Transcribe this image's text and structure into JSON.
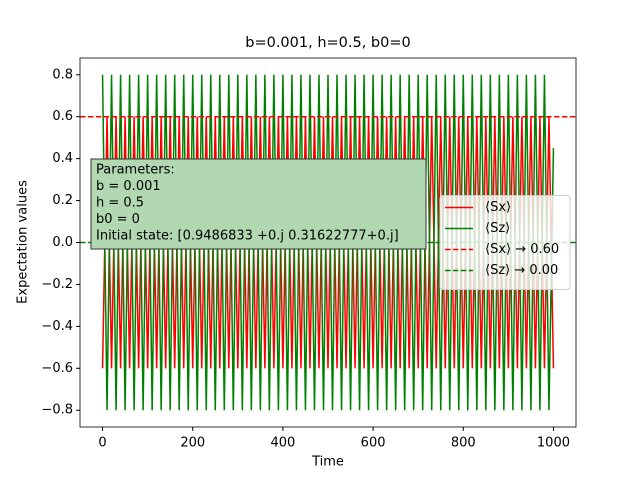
{
  "chart_data": {
    "type": "line",
    "title": "b=0.001, h=0.5, b0=0",
    "xlabel": "Time",
    "ylabel": "Expectation values",
    "x": [
      0,
      10,
      20,
      30,
      40,
      50,
      60,
      70,
      80,
      90,
      100,
      110,
      120,
      130,
      140,
      150,
      160,
      170,
      180,
      190,
      200,
      210,
      220,
      230,
      240,
      250,
      260,
      270,
      280,
      290,
      300,
      310,
      320,
      330,
      340,
      350,
      360,
      370,
      380,
      390,
      400,
      410,
      420,
      430,
      440,
      450,
      460,
      470,
      480,
      490,
      500,
      510,
      520,
      530,
      540,
      550,
      560,
      570,
      580,
      590,
      600,
      610,
      620,
      630,
      640,
      650,
      660,
      670,
      680,
      690,
      700,
      710,
      720,
      730,
      740,
      750,
      760,
      770,
      780,
      790,
      800,
      810,
      820,
      830,
      840,
      850,
      860,
      870,
      880,
      890,
      900,
      910,
      920,
      930,
      940,
      950,
      960,
      970,
      980,
      990,
      1000
    ],
    "series": [
      {
        "name": "⟨Sx⟩",
        "color": "#ff0000",
        "values": [
          -0.6,
          0.6,
          -0.6,
          0.6,
          -0.6,
          0.6,
          -0.6,
          0.6,
          -0.6,
          0.6,
          -0.6,
          0.6,
          -0.6,
          0.6,
          -0.6,
          0.6,
          -0.6,
          0.6,
          -0.6,
          0.6,
          -0.6,
          0.6,
          -0.6,
          0.6,
          -0.6,
          0.6,
          -0.6,
          0.6,
          -0.6,
          0.6,
          -0.6,
          0.6,
          -0.6,
          0.6,
          -0.6,
          0.6,
          -0.6,
          0.6,
          -0.6,
          0.6,
          -0.6,
          0.6,
          -0.6,
          0.6,
          -0.6,
          0.6,
          -0.6,
          0.6,
          -0.6,
          0.6,
          -0.6,
          0.6,
          -0.6,
          0.6,
          -0.6,
          0.6,
          -0.6,
          0.6,
          -0.6,
          0.6,
          -0.6,
          0.6,
          -0.6,
          0.6,
          -0.6,
          0.6,
          -0.6,
          0.6,
          -0.6,
          0.6,
          -0.6,
          0.6,
          -0.6,
          0.6,
          -0.6,
          0.6,
          -0.6,
          0.6,
          -0.6,
          0.6,
          -0.6,
          0.6,
          -0.6,
          0.6,
          -0.6,
          0.6,
          -0.6,
          0.6,
          -0.6,
          0.6,
          -0.6,
          0.6,
          -0.6,
          0.6,
          -0.6,
          0.6,
          -0.6,
          0.6,
          -0.6,
          0.6,
          -0.6
        ]
      },
      {
        "name": "⟨Sz⟩",
        "color": "#008000",
        "values": [
          0.8,
          -0.8,
          0.8,
          -0.8,
          0.8,
          -0.8,
          0.8,
          -0.8,
          0.8,
          -0.8,
          0.8,
          -0.8,
          0.8,
          -0.8,
          0.8,
          -0.8,
          0.8,
          -0.8,
          0.8,
          -0.8,
          0.8,
          -0.8,
          0.8,
          -0.8,
          0.8,
          -0.8,
          0.8,
          -0.8,
          0.8,
          -0.8,
          0.8,
          -0.8,
          0.8,
          -0.8,
          0.8,
          -0.8,
          0.8,
          -0.8,
          0.8,
          -0.8,
          0.8,
          -0.8,
          0.8,
          -0.8,
          0.8,
          -0.8,
          0.8,
          -0.8,
          0.8,
          -0.8,
          0.8,
          -0.8,
          0.8,
          -0.8,
          0.8,
          -0.8,
          0.8,
          -0.8,
          0.8,
          -0.8,
          0.8,
          -0.8,
          0.8,
          -0.8,
          0.8,
          -0.8,
          0.8,
          -0.8,
          0.8,
          -0.8,
          0.8,
          -0.8,
          0.8,
          -0.8,
          0.8,
          -0.8,
          0.8,
          -0.8,
          0.8,
          -0.8,
          0.8,
          -0.8,
          0.8,
          -0.8,
          0.8,
          -0.8,
          0.8,
          -0.8,
          0.8,
          -0.8,
          0.8,
          -0.8,
          0.8,
          -0.8,
          0.8,
          -0.8,
          0.8,
          -0.8,
          0.8,
          -0.8,
          0.45
        ]
      }
    ],
    "hlines": [
      {
        "name": "⟨Sx⟩ → 0.60",
        "color": "#ff0000",
        "value": 0.6
      },
      {
        "name": "⟨Sz⟩ → 0.00",
        "color": "#008000",
        "value": 0
      }
    ],
    "annotation": [
      "Parameters:",
      "b = 0.001",
      "h = 0.5",
      "b0 = 0",
      "Initial state: [0.9486833 +0.j 0.31622777+0.j]"
    ],
    "xlim": [
      -50,
      1050
    ],
    "ylim": [
      -0.88,
      0.88
    ],
    "xticks": [
      0,
      200,
      400,
      600,
      800,
      1000
    ],
    "yticks": [
      {
        "value": -0.8,
        "label": "−0.8"
      },
      {
        "value": -0.6,
        "label": "−0.6"
      },
      {
        "value": -0.4,
        "label": "−0.4"
      },
      {
        "value": -0.2,
        "label": "−0.2"
      },
      {
        "value": 0,
        "label": "0.0"
      },
      0.2,
      0.4,
      0.6,
      0.8
    ],
    "legend": "center right"
  }
}
